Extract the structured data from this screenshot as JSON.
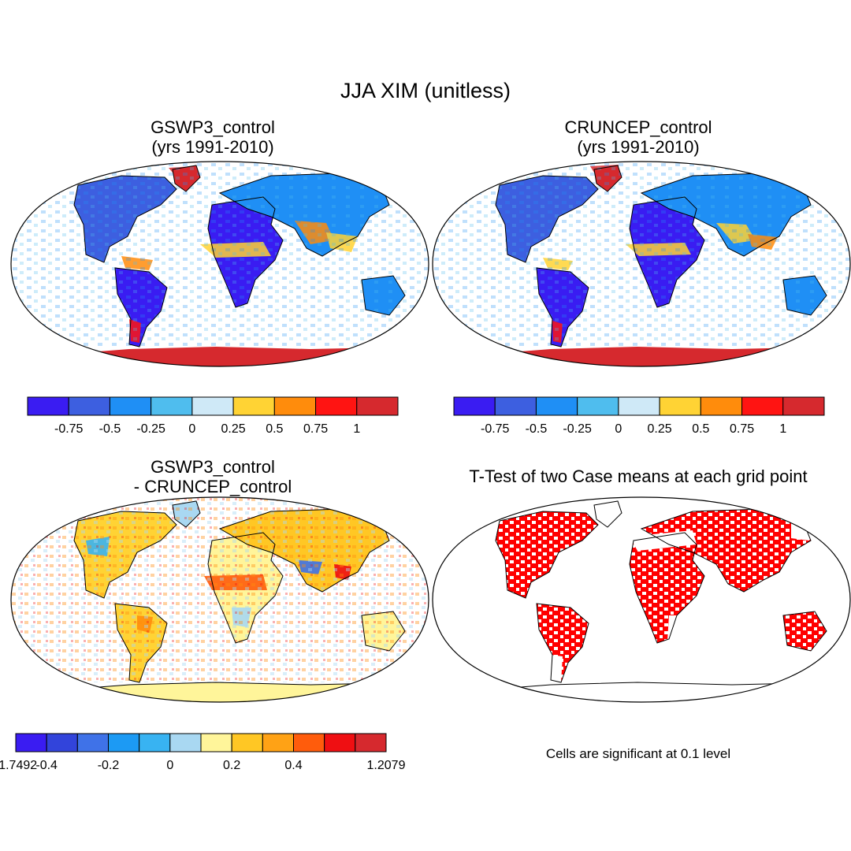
{
  "figure": {
    "title": "JJA XIM (unitless)",
    "panels": [
      {
        "title_line1": "GSWP3_control",
        "title_line2": "(yrs 1991-2010)"
      },
      {
        "title_line1": "CRUNCEP_control",
        "title_line2": "(yrs 1991-2010)"
      },
      {
        "title_line1": "GSWP3_control",
        "title_line2": "- CRUNCEP_control"
      },
      {
        "title_line1": "T-Test of two Case means at each grid point",
        "title_line2": ""
      }
    ],
    "significance_note": "Cells are significant at 0.1 level"
  },
  "colorbars": {
    "absolute": {
      "colors": [
        "#3a1cf2",
        "#3d5fe0",
        "#1f8ff5",
        "#4fbdee",
        "#cfe9f7",
        "#ffd334",
        "#ff8c0c",
        "#ff1412",
        "#d6292e"
      ],
      "labels": [
        "-0.75",
        "-0.5",
        "-0.25",
        "0",
        "0.25",
        "0.5",
        "0.75",
        "1"
      ]
    },
    "difference": {
      "colors": [
        "#3a1cf2",
        "#3244db",
        "#3f72e8",
        "#1c9af4",
        "#38b3f2",
        "#a9d8f2",
        "#fff59a",
        "#ffc724",
        "#ffa215",
        "#ff5c0c",
        "#ef0f12",
        "#d6292e"
      ],
      "labels": [
        "-1.7492",
        "-0.4",
        "-0.2",
        "0",
        "0.2",
        "0.4",
        "1.2079"
      ]
    }
  },
  "colors": {
    "ocean": "#ffffff",
    "land_dry_absolute": "#3a1cf2",
    "antarctica_absolute": "#d6292e",
    "antarctica_difference": "#fff59a",
    "significant": "#ff0000"
  }
}
